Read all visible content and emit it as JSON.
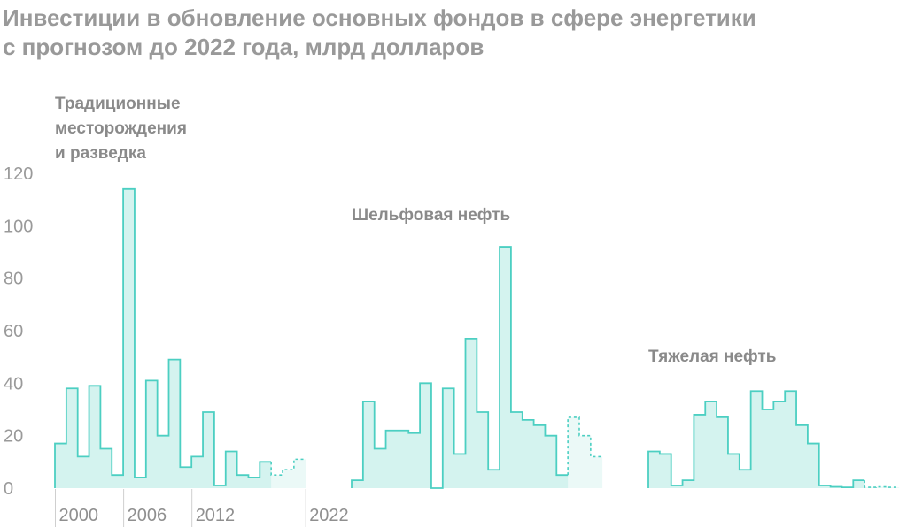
{
  "title_lines": [
    "Инвестиции в обновление основных фондов в сфере энергетики",
    "с прогнозом до 2022 года, млрд долларов"
  ],
  "colors": {
    "line": "#4ccfc2",
    "fill": "#d4f3ef",
    "forecast_fill": "#ebf9f7",
    "text": "#999999"
  },
  "chart_data": {
    "type": "area",
    "chart_style": "step",
    "ylim": [
      0,
      120
    ],
    "yticks": [
      "0",
      "20",
      "40",
      "60",
      "80",
      "100",
      "120"
    ],
    "x_tick_labels": [
      "2000",
      "2006",
      "2012",
      "2022"
    ],
    "forecast_start": 2019,
    "grid": false,
    "panels": [
      {
        "label": [
          "Традиционные",
          "месторождения",
          "и разведка"
        ],
        "years": [
          2000,
          2001,
          2002,
          2003,
          2004,
          2005,
          2006,
          2007,
          2008,
          2009,
          2010,
          2011,
          2012,
          2013,
          2014,
          2015,
          2016,
          2017,
          2018,
          2019,
          2020,
          2021
        ],
        "values": [
          17,
          38,
          12,
          39,
          15,
          5,
          114,
          4,
          41,
          20,
          49,
          8,
          12,
          29,
          1,
          14,
          5,
          4,
          10,
          5,
          7,
          11
        ]
      },
      {
        "label": [
          "Шельфовая нефть"
        ],
        "years": [
          2000,
          2001,
          2002,
          2003,
          2004,
          2005,
          2006,
          2007,
          2008,
          2009,
          2010,
          2011,
          2012,
          2013,
          2014,
          2015,
          2016,
          2017,
          2018,
          2019,
          2020,
          2021
        ],
        "values": [
          3,
          33,
          15,
          22,
          22,
          21,
          40,
          0,
          38,
          13,
          57,
          29,
          7,
          92,
          29,
          26,
          24,
          20,
          5,
          27,
          20,
          12
        ]
      },
      {
        "label": [
          "Тяжелая нефть"
        ],
        "years": [
          2000,
          2001,
          2002,
          2003,
          2004,
          2005,
          2006,
          2007,
          2008,
          2009,
          2010,
          2011,
          2012,
          2013,
          2014,
          2015,
          2016,
          2017,
          2018,
          2019,
          2020,
          2021
        ],
        "values": [
          14,
          13,
          1,
          3,
          28,
          33,
          27,
          13,
          7,
          37,
          30,
          33,
          37,
          24,
          17,
          1,
          0.5,
          0.3,
          3,
          0.3,
          0.5,
          0.3
        ]
      }
    ]
  }
}
